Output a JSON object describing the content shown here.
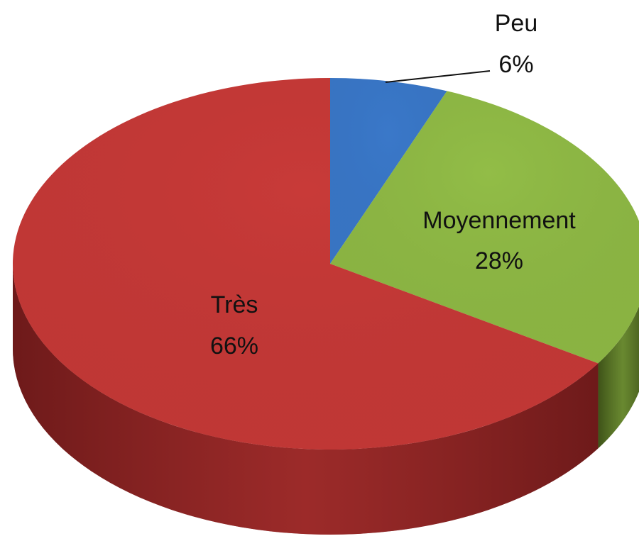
{
  "chart_data": {
    "type": "pie",
    "categories": [
      "Peu",
      "Moyennement",
      "Très"
    ],
    "values": [
      6,
      28,
      66
    ],
    "value_labels": [
      "6%",
      "28%",
      "66%"
    ],
    "colors": [
      "#3a78c9",
      "#92bd47",
      "#c83a38"
    ],
    "side_colors": [
      "#1f4a80",
      "#3e5218",
      "#6e1a1a"
    ]
  }
}
